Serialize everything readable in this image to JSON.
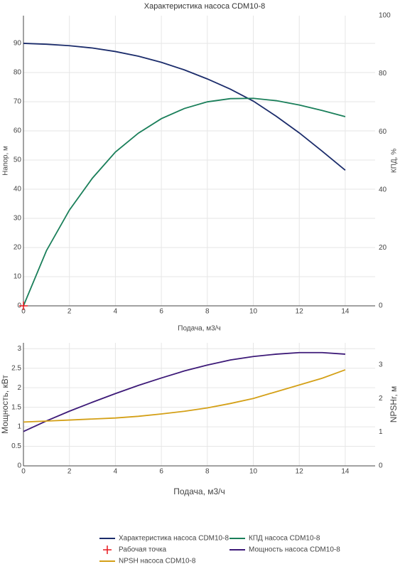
{
  "chart_data": [
    {
      "type": "line",
      "title": "Характеристика насоса CDM10-8",
      "x_label": "Подача, м3/ч",
      "y_label": "Напор, м",
      "y2_label": "КПД, %",
      "x": [
        0,
        1,
        2,
        3,
        4,
        5,
        6,
        7,
        8,
        9,
        10,
        11,
        12,
        13,
        14
      ],
      "xlim": [
        0,
        15.3
      ],
      "xticks": [
        0,
        2,
        4,
        6,
        8,
        10,
        12,
        14
      ],
      "ylim": [
        0,
        99.5
      ],
      "yticks": [
        0,
        10,
        20,
        30,
        40,
        50,
        60,
        70,
        80,
        90
      ],
      "y2lim": [
        0,
        100
      ],
      "y2ticks": [
        0,
        20,
        40,
        60,
        80,
        100
      ],
      "grid": true,
      "series": [
        {
          "name": "Характеристика насоса CDM10-8",
          "color": "#1b2c6b",
          "values": [
            90,
            89.7,
            89.2,
            88.4,
            87.2,
            85.6,
            83.5,
            80.9,
            77.8,
            74.3,
            70.2,
            65.0,
            59.3,
            53.0,
            46.5
          ]
        },
        {
          "name": "КПД насоса CDM10-8",
          "color": "#1a7f5a",
          "axis": "y2",
          "values": [
            0,
            19,
            33,
            44,
            53,
            59.5,
            64.5,
            68,
            70.3,
            71.4,
            71.5,
            70.7,
            69.2,
            67.3,
            65.2
          ]
        },
        {
          "name": "Рабочая точка",
          "color": "#e8191f",
          "marker": "cross",
          "x": [
            0
          ],
          "values": [
            0
          ]
        }
      ]
    },
    {
      "type": "line",
      "x_label": "Подача, м3/ч",
      "y_label": "Мощность, кВт",
      "y2_label": "NPSHr, м",
      "x": [
        0,
        1,
        2,
        3,
        4,
        5,
        6,
        7,
        8,
        9,
        10,
        11,
        12,
        13,
        14
      ],
      "xlim": [
        0,
        15.3
      ],
      "xticks": [
        0,
        2,
        4,
        6,
        8,
        10,
        12,
        14
      ],
      "ylim": [
        0,
        3.15
      ],
      "yticks": [
        0,
        0.5,
        1,
        1.5,
        2,
        2.5,
        3
      ],
      "y2lim": [
        0,
        3.65
      ],
      "y2ticks": [
        0,
        1,
        2,
        3
      ],
      "grid": true,
      "series": [
        {
          "name": "Мощность насоса CDM10-8",
          "color": "#3d1a78",
          "values": [
            0.88,
            1.15,
            1.4,
            1.63,
            1.85,
            2.06,
            2.25,
            2.43,
            2.58,
            2.71,
            2.8,
            2.86,
            2.9,
            2.9,
            2.86
          ]
        },
        {
          "name": "NPSH насоса CDM10-8",
          "color": "#d4a017",
          "axis": "y2",
          "values": [
            1.3,
            1.33,
            1.36,
            1.39,
            1.42,
            1.47,
            1.54,
            1.62,
            1.72,
            1.85,
            2.0,
            2.2,
            2.4,
            2.6,
            2.85
          ]
        }
      ]
    }
  ]
}
